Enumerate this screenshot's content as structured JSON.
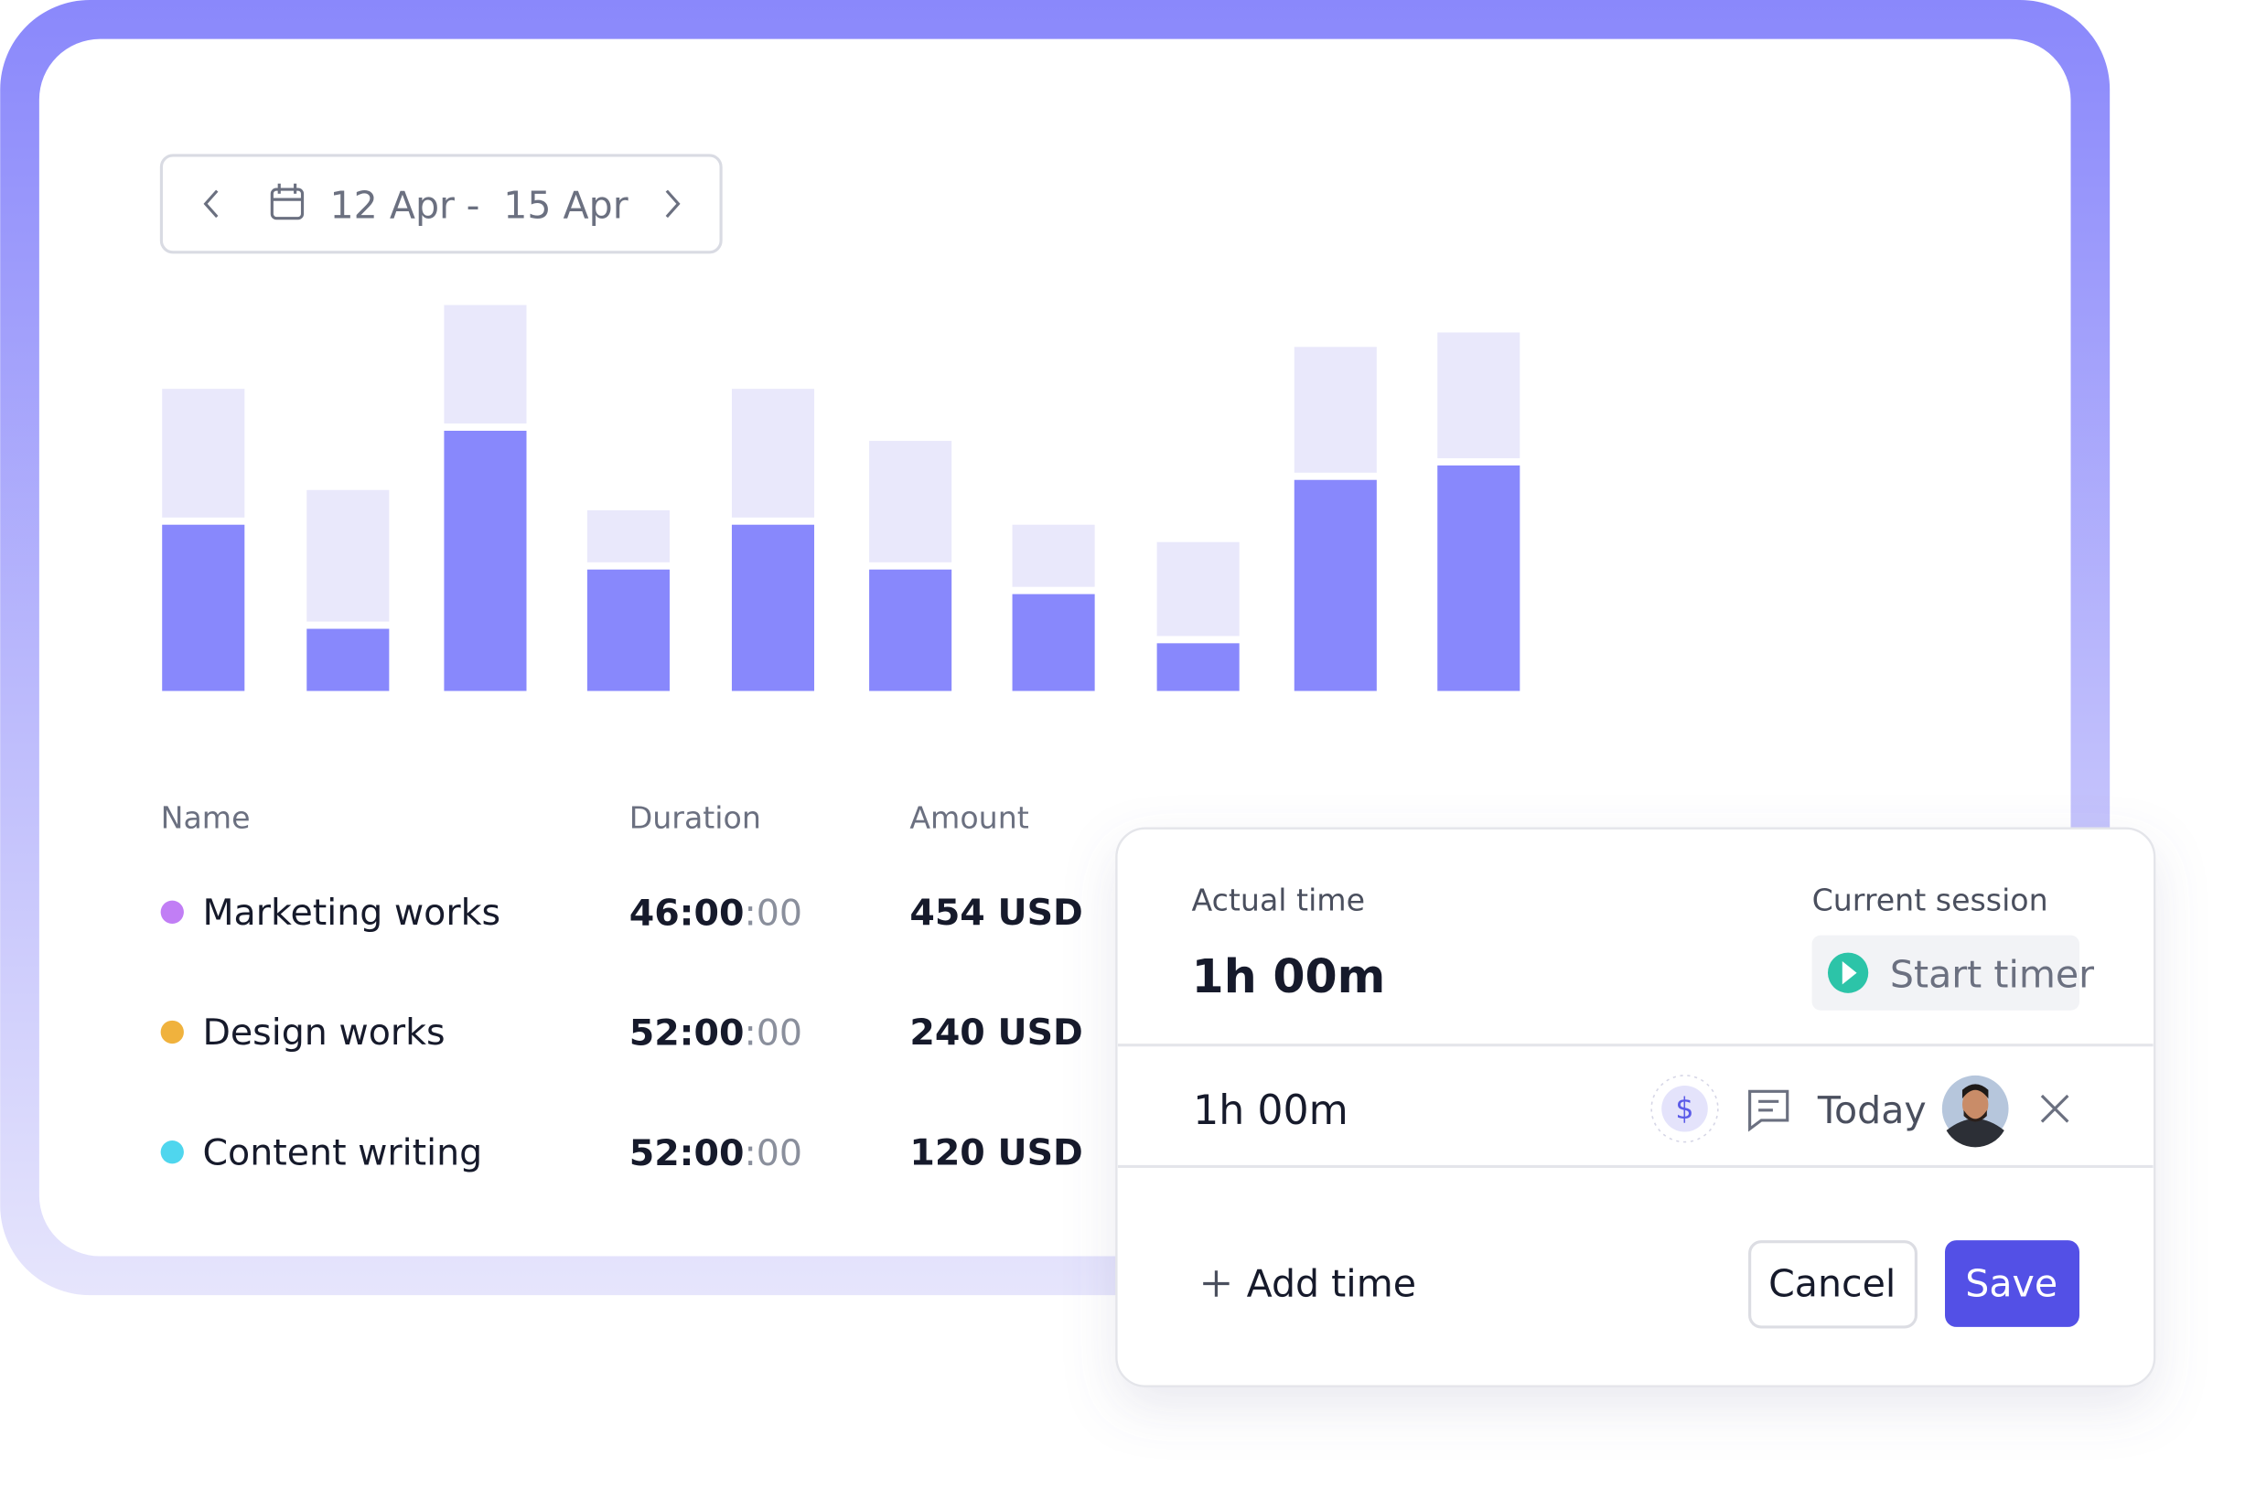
{
  "date_range": {
    "start": "12 Apr",
    "separator": "-",
    "end": "15 Apr"
  },
  "chart_data": {
    "type": "bar",
    "stacked": true,
    "categories": [
      null,
      null,
      null,
      null,
      null,
      null,
      null,
      null,
      null,
      null
    ],
    "series": [
      {
        "color": "#8888fc",
        "values": [
          115,
          43,
          180,
          84,
          115,
          84,
          67,
          33,
          146,
          156
        ]
      },
      {
        "color": "#e9e8fb",
        "values": [
          89,
          91,
          82,
          36,
          89,
          84,
          43,
          65,
          87,
          87
        ]
      }
    ],
    "ylim": [
      0,
      270
    ]
  },
  "table": {
    "headers": [
      "Name",
      "Duration",
      "Amount"
    ],
    "rows": [
      {
        "color": "#c17ef5",
        "name": "Marketing works",
        "duration_main": "46:00",
        "duration_rest": ":00",
        "amount": "454 USD"
      },
      {
        "color": "#f0b23d",
        "name": "Design works",
        "duration_main": "52:00",
        "duration_rest": ":00",
        "amount": "240 USD"
      },
      {
        "color": "#4fd6ee",
        "name": "Content writing",
        "duration_main": "52:00",
        "duration_rest": ":00",
        "amount": "120 USD"
      }
    ]
  },
  "popup": {
    "actual_label": "Actual time",
    "actual_value": "1h 00m",
    "session_label": "Current session",
    "start_timer": "Start timer",
    "entry_time": "1h 00m",
    "billable_icon": "$",
    "entry_date": "Today",
    "add_time": "Add time",
    "cancel": "Cancel",
    "save": "Save"
  }
}
